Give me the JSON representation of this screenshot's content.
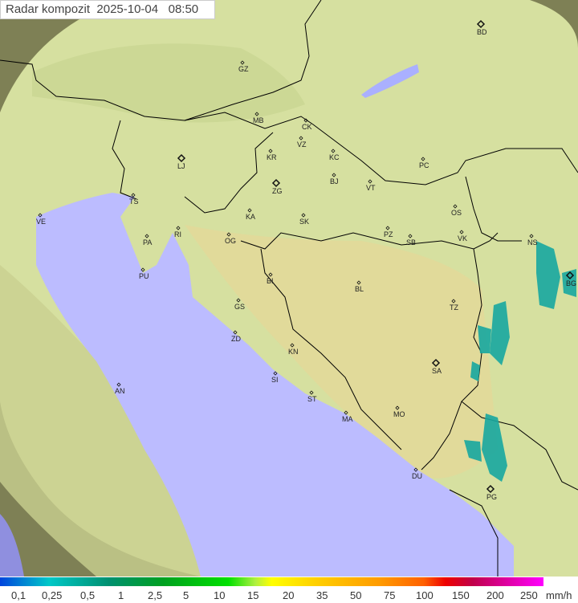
{
  "title": "Radar kompozit  2025-10-04   08:50",
  "colors": {
    "sea": "#bcbcff",
    "land_in_range": "#d6e0a0",
    "land_out_of_range": "#7e8055",
    "echo": "#18a8a0",
    "border": "#000000"
  },
  "cities": [
    {
      "code": "BD",
      "marker": "diamond-large"
    },
    {
      "code": "GZ",
      "marker": "diamond"
    },
    {
      "code": "MB",
      "marker": "diamond"
    },
    {
      "code": "CK",
      "marker": "diamond"
    },
    {
      "code": "VZ",
      "marker": "diamond"
    },
    {
      "code": "KR",
      "marker": "diamond"
    },
    {
      "code": "KC",
      "marker": "diamond"
    },
    {
      "code": "LJ",
      "marker": "diamond-large"
    },
    {
      "code": "PC",
      "marker": "diamond"
    },
    {
      "code": "BJ",
      "marker": "diamond"
    },
    {
      "code": "ZG",
      "marker": "diamond-large"
    },
    {
      "code": "VT",
      "marker": "diamond"
    },
    {
      "code": "TS",
      "marker": "diamond"
    },
    {
      "code": "VE",
      "marker": "diamond"
    },
    {
      "code": "RI",
      "marker": "diamond"
    },
    {
      "code": "KA",
      "marker": "diamond"
    },
    {
      "code": "SK",
      "marker": "diamond"
    },
    {
      "code": "OS",
      "marker": "diamond"
    },
    {
      "code": "PA",
      "marker": "diamond"
    },
    {
      "code": "PZ",
      "marker": "diamond"
    },
    {
      "code": "SB",
      "marker": "diamond"
    },
    {
      "code": "VK",
      "marker": "diamond"
    },
    {
      "code": "NS",
      "marker": "diamond"
    },
    {
      "code": "OG",
      "marker": "diamond"
    },
    {
      "code": "PU",
      "marker": "diamond"
    },
    {
      "code": "BG",
      "marker": "diamond-large"
    },
    {
      "code": "BI",
      "marker": "diamond"
    },
    {
      "code": "BL",
      "marker": "diamond"
    },
    {
      "code": "TZ",
      "marker": "diamond"
    },
    {
      "code": "GS",
      "marker": "diamond"
    },
    {
      "code": "ZD",
      "marker": "diamond"
    },
    {
      "code": "KN",
      "marker": "diamond"
    },
    {
      "code": "SA",
      "marker": "diamond-large"
    },
    {
      "code": "SI",
      "marker": "diamond"
    },
    {
      "code": "AN",
      "marker": "diamond"
    },
    {
      "code": "ST",
      "marker": "diamond"
    },
    {
      "code": "MA",
      "marker": "diamond"
    },
    {
      "code": "MO",
      "marker": "diamond"
    },
    {
      "code": "DU",
      "marker": "diamond"
    },
    {
      "code": "PG",
      "marker": "diamond-large"
    }
  ],
  "legend": {
    "labels": [
      "0,1",
      "0,25",
      "0,5",
      "1",
      "2,5",
      "5",
      "10",
      "15",
      "20",
      "35",
      "50",
      "75",
      "100",
      "150",
      "200",
      "250"
    ],
    "unit": "mm/h"
  }
}
